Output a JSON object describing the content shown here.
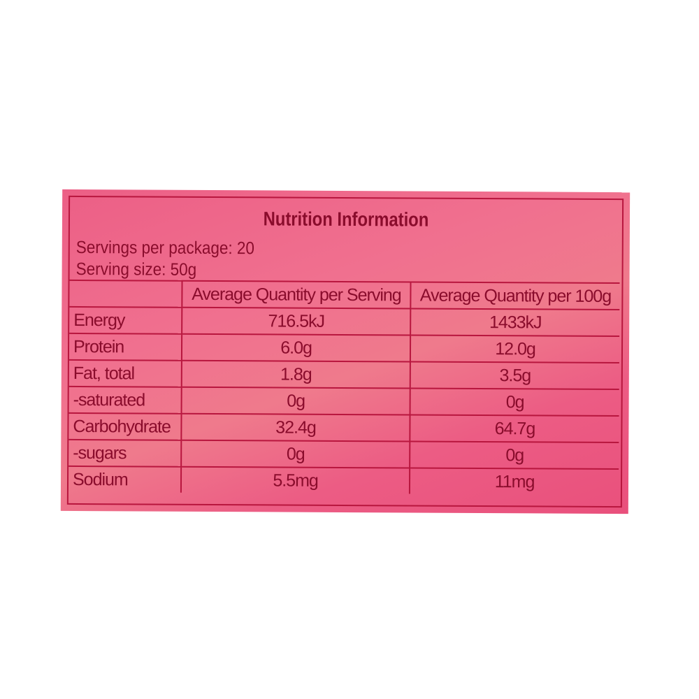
{
  "title": "Nutrition Information",
  "servings_per_package": "Servings per package: 20",
  "serving_size": "Serving size: 50g",
  "table": {
    "headers": [
      "",
      "Average Quantity per Serving",
      "Average Quantity per 100g"
    ],
    "rows": [
      [
        "Energy",
        "716.5kJ",
        "1433kJ"
      ],
      [
        "Protein",
        "6.0g",
        "12.0g"
      ],
      [
        "Fat, total",
        "1.8g",
        "3.5g"
      ],
      [
        "-saturated",
        "0g",
        "0g"
      ],
      [
        "Carbohydrate",
        "32.4g",
        "64.7g"
      ],
      [
        "-sugars",
        "0g",
        "0g"
      ],
      [
        "Sodium",
        "5.5mg",
        "11mg"
      ]
    ]
  },
  "colors": {
    "label": "#ec5f86",
    "text": "#8a0c2c",
    "border": "#b8163e"
  }
}
